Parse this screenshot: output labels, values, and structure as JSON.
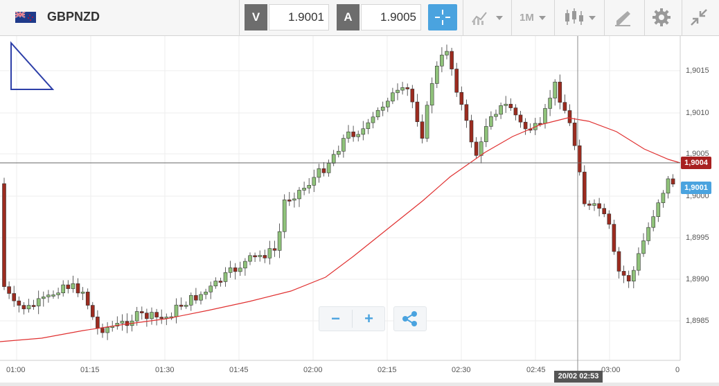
{
  "header": {
    "symbol": "GBPNZD",
    "flag_icon": "gb-nz-flag-icon",
    "sell_label": "V",
    "sell_price": "1.9001",
    "buy_label": "A",
    "buy_price": "1.9005",
    "timeframe": "1M",
    "icons": [
      "crosshair-icon",
      "indicators-icon",
      "candles-icon",
      "drawing-tools-icon",
      "gear-icon",
      "collapse-icon"
    ]
  },
  "axis": {
    "y_ticks": [
      "1,9015",
      "1,9010",
      "1,9005",
      "1,9000",
      "1,8995",
      "1,8990",
      "1,8985"
    ],
    "x_ticks": [
      "01:00",
      "01:15",
      "01:30",
      "01:45",
      "02:00",
      "02:15",
      "02:30",
      "02:45",
      "03:00",
      "0"
    ]
  },
  "tags": {
    "current_price": "1,9004",
    "bid_price": "1,9001",
    "crosshair_time": "20/02 02:53"
  },
  "controls": {
    "zoom_out": "−",
    "zoom_in": "+",
    "share_icon": "share-icon"
  },
  "colors": {
    "up": "#8fc27a",
    "down": "#9c2b1f",
    "ma": "#e03030",
    "accent": "#4aa3df",
    "price_tag": "#a82020",
    "bid_tag": "#4aa3df"
  }
}
